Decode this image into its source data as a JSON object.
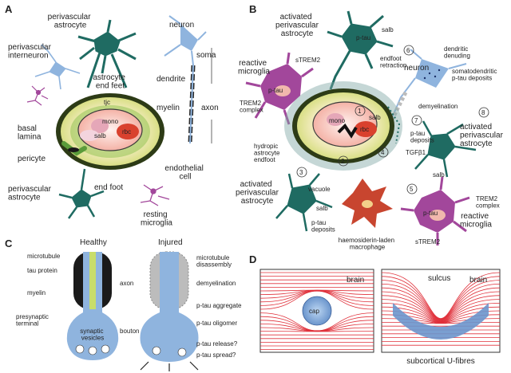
{
  "panels": {
    "a": {
      "letter": "A",
      "labels": {
        "perivascular_astrocyte_top": "perivascular\nastrocyte",
        "neuron": "neuron",
        "perivascular_interneuron": "perivascular\ninterneuron",
        "dendrite": "dendrite",
        "soma": "soma",
        "astrocyte_end_feet": "astrocyte\nend feet",
        "myelin": "myelin",
        "axon": "axon",
        "tjc": "tjc",
        "mono": "mono",
        "salb": "salb",
        "rbc": "rbc",
        "basal_lamina": "basal\nlamina",
        "pericyte": "pericyte",
        "endothelial_cell": "endothelial\ncell",
        "end_foot": "end foot",
        "perivascular_astrocyte_bottom": "perivascular\nastrocyte",
        "resting_microglia": "resting\nmicroglia"
      }
    },
    "b": {
      "letter": "B",
      "labels": {
        "activated_perivascular_astrocyte_top": "activated\nperivascular\nastrocyte",
        "p_tau_top": "p-tau",
        "salb_top": "salb",
        "endfoot_retraction": "endfoot\nretraction",
        "reactive_microglia_left": "reactive\nmicroglia",
        "strem2_top": "sTREM2",
        "p_tau_microglia": "p-tau",
        "trem2_complex_left": "TREM2\ncomplex",
        "neuron": "neuron",
        "dendritic_denuding": "dendritic\ndenuding",
        "somatodendritic": "somatodendritic\np-tau deposits",
        "demyelination": "demyelination",
        "mono": "mono",
        "rbc": "rbc",
        "salb_vessel": "salb",
        "hydropic_endfoot": "hydropic\nastrocyte\nendfoot",
        "p_tau_deposits_mid": "p-tau\ndeposits",
        "activated_perivascular_astrocyte_right": "activated\nperivascular\nastrocyte",
        "tgfb1": "TGFβ1",
        "salb_right": "salb",
        "vacuole": "vacuole",
        "activated_perivascular_astrocyte_left": "activated\nperivascular\nastrocyte",
        "salb_bottom": "salb",
        "p_tau_deposits_bottom": "p-tau\ndeposits",
        "haemosiderin": "haemosiderin-laden\nmacrophage",
        "trem2_complex_right": "TREM2\ncomplex",
        "p_tau_microglia_right": "p-tau",
        "strem2_bottom": "sTREM2",
        "reactive_microglia_right": "reactive\nmicroglia",
        "numbers": [
          "1",
          "2",
          "3",
          "4",
          "5",
          "6",
          "7",
          "8"
        ]
      }
    },
    "c": {
      "letter": "C",
      "healthy": "Healthy",
      "injured": "Injured",
      "labels": {
        "microtubule": "microtubule",
        "tau_protein": "tau protein",
        "myelin": "myelin",
        "presynaptic_terminal": "presynaptic\nterminal",
        "synaptic_vesicles": "synaptic\nvesicles",
        "axon": "axon",
        "bouton": "bouton",
        "microtubule_disassembly": "microtubule\ndisassembly",
        "demyelination": "demyelination",
        "p_tau_aggregate": "p-tau aggregate",
        "p_tau_oligomer": "p-tau oligomer",
        "p_tau_release": "p-tau release?",
        "p_tau_spread": "p-tau spread?"
      }
    },
    "d": {
      "letter": "D",
      "labels": {
        "brain_left": "brain",
        "cap": "cap",
        "sulcus": "sulcus",
        "brain_right": "brain",
        "subcortical": "subcortical U-fibres"
      }
    }
  },
  "colors": {
    "astrocyte": "#1f6b62",
    "neuron": "#8fb4de",
    "microglia": "#a2479b",
    "vessel_outer": "#2d3b16",
    "vessel_fill": "#d9e388",
    "rbc": "#d9412e",
    "lines_red": "#e0303a",
    "fibre_blue": "#6b95cc",
    "haemosiderin": "#c8452f"
  }
}
